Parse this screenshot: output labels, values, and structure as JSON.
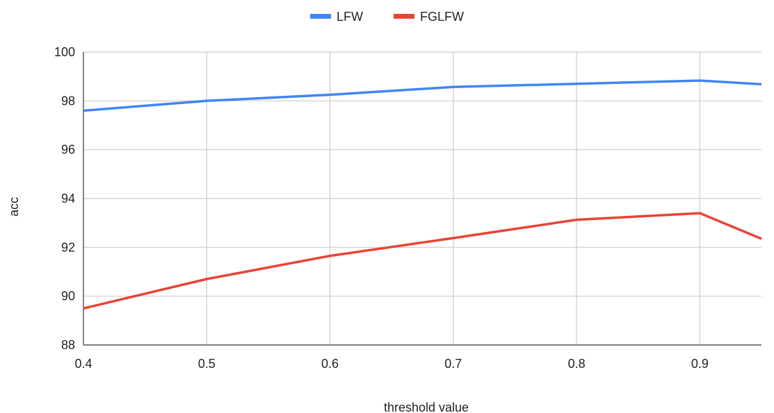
{
  "chart_data": {
    "type": "line",
    "title": "",
    "xlabel": "threshold value",
    "ylabel": "acc",
    "xlim": [
      0.4,
      0.95
    ],
    "ylim": [
      88,
      100
    ],
    "x_ticks": [
      "0.4",
      "0.5",
      "0.6",
      "0.7",
      "0.8",
      "0.9"
    ],
    "y_ticks": [
      "88",
      "90",
      "92",
      "94",
      "96",
      "98",
      "100"
    ],
    "grid": true,
    "legend_position": "top-center",
    "x": [
      0.4,
      0.5,
      0.6,
      0.7,
      0.8,
      0.9,
      0.95
    ],
    "series": [
      {
        "name": "LFW",
        "color": "#4285f4",
        "values": [
          97.6,
          98.0,
          98.25,
          98.57,
          98.7,
          98.83,
          98.68
        ]
      },
      {
        "name": "FGLFW",
        "color": "#ea4335",
        "values": [
          89.5,
          90.7,
          91.65,
          92.38,
          93.13,
          93.4,
          92.35
        ]
      }
    ]
  }
}
